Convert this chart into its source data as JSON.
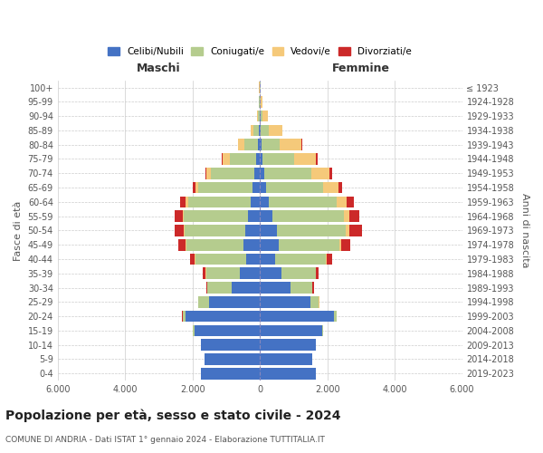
{
  "age_groups": [
    "0-4",
    "5-9",
    "10-14",
    "15-19",
    "20-24",
    "25-29",
    "30-34",
    "35-39",
    "40-44",
    "45-49",
    "50-54",
    "55-59",
    "60-64",
    "65-69",
    "70-74",
    "75-79",
    "80-84",
    "85-89",
    "90-94",
    "95-99",
    "100+"
  ],
  "birth_years": [
    "2019-2023",
    "2014-2018",
    "2009-2013",
    "2004-2008",
    "1999-2003",
    "1994-1998",
    "1989-1993",
    "1984-1988",
    "1979-1983",
    "1974-1978",
    "1969-1973",
    "1964-1968",
    "1959-1963",
    "1954-1958",
    "1949-1953",
    "1944-1948",
    "1939-1943",
    "1934-1938",
    "1929-1933",
    "1924-1928",
    "≤ 1923"
  ],
  "male": {
    "celibi": [
      1750,
      1650,
      1750,
      1950,
      2200,
      1500,
      850,
      600,
      420,
      480,
      430,
      350,
      280,
      220,
      160,
      100,
      60,
      30,
      15,
      8,
      5
    ],
    "coniugati": [
      5,
      5,
      10,
      30,
      100,
      320,
      700,
      1000,
      1500,
      1700,
      1800,
      1900,
      1850,
      1600,
      1300,
      800,
      400,
      150,
      50,
      20,
      10
    ],
    "vedovi": [
      0,
      0,
      0,
      0,
      1,
      2,
      5,
      10,
      15,
      20,
      30,
      50,
      70,
      90,
      120,
      200,
      180,
      90,
      30,
      10,
      5
    ],
    "divorziati": [
      0,
      0,
      0,
      0,
      5,
      15,
      30,
      80,
      150,
      220,
      270,
      230,
      180,
      90,
      50,
      30,
      10,
      5,
      0,
      0,
      0
    ]
  },
  "female": {
    "nubili": [
      1650,
      1550,
      1650,
      1850,
      2200,
      1500,
      900,
      650,
      450,
      550,
      500,
      380,
      270,
      180,
      120,
      70,
      40,
      20,
      10,
      5,
      3
    ],
    "coniugate": [
      5,
      5,
      10,
      30,
      80,
      250,
      650,
      1000,
      1500,
      1800,
      2050,
      2100,
      2000,
      1700,
      1400,
      950,
      550,
      230,
      70,
      20,
      8
    ],
    "vedove": [
      0,
      0,
      0,
      0,
      2,
      5,
      15,
      20,
      30,
      60,
      100,
      180,
      300,
      450,
      550,
      650,
      650,
      420,
      160,
      40,
      15
    ],
    "divorziate": [
      0,
      0,
      0,
      0,
      5,
      15,
      35,
      80,
      150,
      260,
      370,
      300,
      230,
      120,
      70,
      40,
      15,
      5,
      0,
      0,
      0
    ]
  },
  "colors": {
    "celibi_nubili": "#4472c4",
    "coniugati": "#b5cc8e",
    "vedovi": "#f5c97a",
    "divorziati": "#cc2929"
  },
  "xlim": 6000,
  "title": "Popolazione per età, sesso e stato civile - 2024",
  "subtitle": "COMUNE DI ANDRIA - Dati ISTAT 1° gennaio 2024 - Elaborazione TUTTITALIA.IT",
  "ylabel_left": "Fasce di età",
  "ylabel_right": "Anni di nascita",
  "xlabel_left": "Maschi",
  "xlabel_right": "Femmine",
  "legend": [
    "Celibi/Nubili",
    "Coniugati/e",
    "Vedovi/e",
    "Divorziati/e"
  ]
}
